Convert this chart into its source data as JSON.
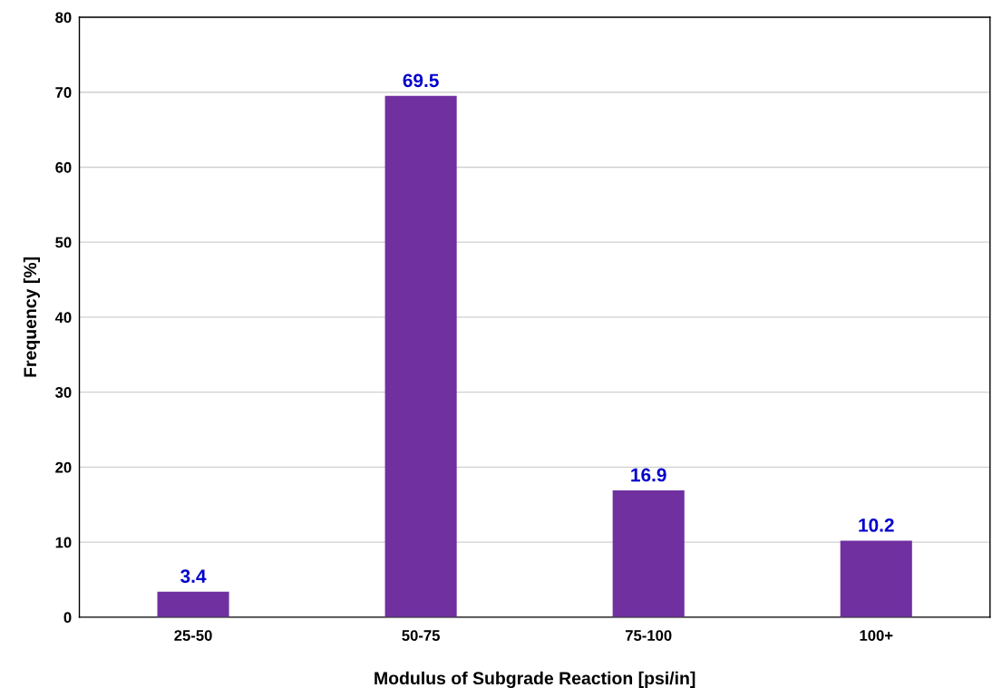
{
  "chart_data": {
    "type": "bar",
    "xlabel": "Modulus of Subgrade Reaction [psi/in]",
    "ylabel": "Frequency [%]",
    "categories": [
      "25-50",
      "50-75",
      "75-100",
      "100+"
    ],
    "values": [
      3.4,
      69.5,
      16.9,
      10.2
    ],
    "color": "#7030a0",
    "ylim": [
      0,
      80
    ],
    "yticks": [
      0,
      10,
      20,
      30,
      40,
      50,
      60,
      70,
      80
    ],
    "grid": "y",
    "data_labels": true
  }
}
